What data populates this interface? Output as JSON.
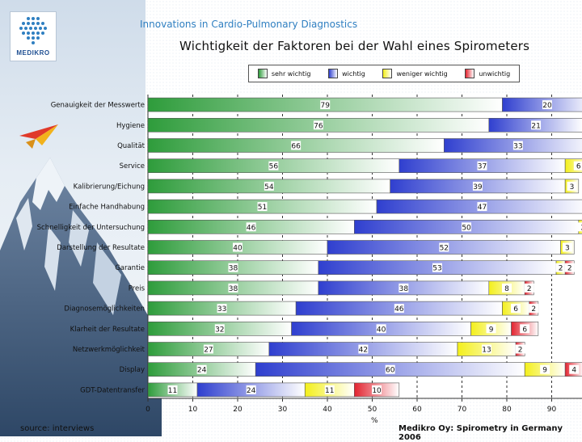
{
  "header": {
    "tagline": "Innovations in Cardio-Pulmonary Diagnostics",
    "title": "Wichtigkeit der Faktoren bei der Wahl eines Spirometers",
    "logo_text": "MEDIKRO"
  },
  "footer": {
    "source": "source: interviews",
    "credit": "Medikro Oy: Spirometry in Germany 2006"
  },
  "colors": {
    "sehr_wichtig": "#2e9c3b",
    "wichtig": "#2f3fcf",
    "weniger_wichtig": "#f3ef1b",
    "unwichtig": "#e2232f"
  },
  "chart_data": {
    "type": "bar",
    "orientation": "horizontal",
    "stacked": true,
    "xlabel": "%",
    "ylabel": "",
    "xlim": [
      0,
      97
    ],
    "xticks": [
      0,
      10,
      20,
      30,
      40,
      50,
      60,
      70,
      80,
      90
    ],
    "legend_position": "top",
    "categories": [
      "Genauigkeit der Messwerte",
      "Hygiene",
      "Qualität",
      "Service",
      "Kalibrierung/Eichung",
      "Einfache Handhabung",
      "Schnelligkeit der Untersuchung",
      "Darstellung der Resultate",
      "Garantie",
      "Preis",
      "Diagnosemöglichkeiten",
      "Klarheit der Resultate",
      "Netzwerkmöglichkeit",
      "Display",
      "GDT-Datentransfer"
    ],
    "series": [
      {
        "name": "sehr wichtig",
        "values": [
          79,
          76,
          66,
          56,
          54,
          51,
          46,
          40,
          38,
          38,
          33,
          32,
          27,
          24,
          11
        ]
      },
      {
        "name": "wichtig",
        "values": [
          20,
          21,
          33,
          37,
          39,
          47,
          50,
          52,
          53,
          38,
          46,
          40,
          42,
          60,
          24
        ]
      },
      {
        "name": "weniger wichtig",
        "values": [
          0,
          0,
          0,
          6,
          3,
          0,
          2,
          3,
          2,
          8,
          6,
          9,
          13,
          9,
          11
        ]
      },
      {
        "name": "unwichtig",
        "values": [
          0,
          0,
          0,
          0,
          0,
          0,
          0,
          0,
          2,
          2,
          2,
          6,
          2,
          4,
          10
        ]
      }
    ]
  }
}
